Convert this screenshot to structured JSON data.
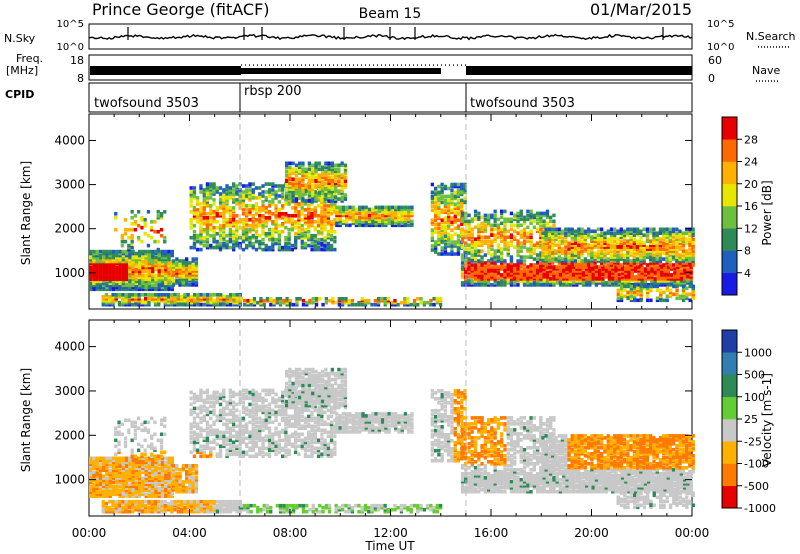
{
  "header": {
    "station": "Prince George (fitACF)",
    "beam": "Beam 15",
    "date": "01/Mar/2015"
  },
  "colors": {
    "power": [
      "#1a1ae6",
      "#1f5fbf",
      "#2f8a5a",
      "#6fbf3f",
      "#e6e600",
      "#ffb000",
      "#ff6a00",
      "#e60000"
    ],
    "velocity": [
      "#1f3fa6",
      "#2f7fb0",
      "#2e8b57",
      "#66cc33",
      "#c8c8c8",
      "#ffb000",
      "#ff7a00",
      "#e60000"
    ]
  },
  "chart_data": [
    {
      "type": "line",
      "name": "nsky-nsearch",
      "left_label": "N.Sky",
      "right_label": "N.Search",
      "left_ticks": [
        "10^5",
        "10^0"
      ],
      "right_ticks": [
        "10^5",
        "10^0"
      ]
    },
    {
      "type": "line",
      "name": "freq-nave",
      "left_label_line1": "Freq.",
      "left_label_line2": "[MHz]",
      "right_label": "Nave",
      "left_ticks": [
        "18",
        "8"
      ],
      "right_ticks": [
        "60",
        "0"
      ]
    },
    {
      "type": "table",
      "name": "cpid",
      "label": "CPID",
      "segments": [
        {
          "name": "twofsound 3503",
          "start_hour": 0,
          "end_hour": 6
        },
        {
          "name": "rbsp 200",
          "start_hour": 6,
          "end_hour": 15
        },
        {
          "name": "twofsound 3503",
          "start_hour": 15,
          "end_hour": 24
        }
      ]
    },
    {
      "type": "heatmap",
      "name": "power",
      "ylabel": "Slant Range [km]",
      "yticks": [
        1000,
        2000,
        3000,
        4000
      ],
      "ylim": [
        180,
        4600
      ],
      "colorbar_label": "Power [dB]",
      "colorbar_ticks": [
        "28",
        "24",
        "20",
        "16",
        "12",
        "8",
        "4"
      ]
    },
    {
      "type": "heatmap",
      "name": "velocity",
      "ylabel": "Slant Range [km]",
      "yticks": [
        1000,
        2000,
        3000,
        4000
      ],
      "ylim": [
        180,
        4600
      ],
      "colorbar_label": "Velocity [m s-1]",
      "colorbar_ticks": [
        "1000",
        "500",
        "100",
        "25",
        "-25",
        "-100",
        "-500",
        "-1000"
      ]
    }
  ],
  "xaxis": {
    "label": "Time UT",
    "ticks": [
      "00:00",
      "04:00",
      "08:00",
      "12:00",
      "16:00",
      "20:00",
      "00:00"
    ]
  }
}
